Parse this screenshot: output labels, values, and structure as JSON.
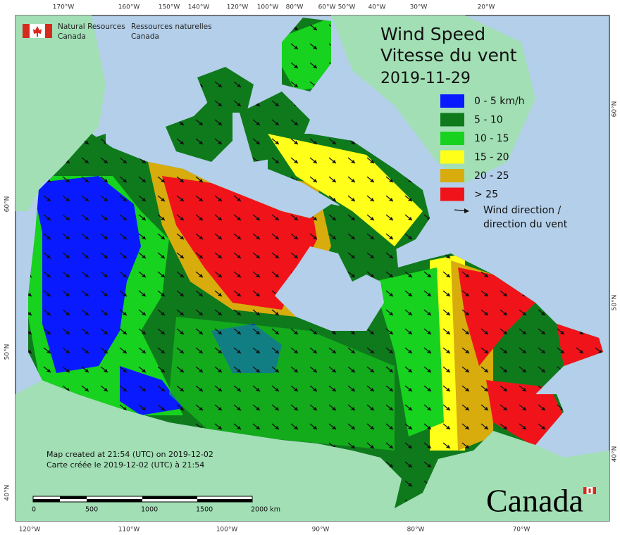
{
  "header": {
    "org_en": [
      "Natural Resources",
      "Canada"
    ],
    "org_fr": [
      "Ressources naturelles",
      "Canada"
    ]
  },
  "title": {
    "line1": "Wind Speed",
    "line2": "Vitesse du vent",
    "date": "2019-11-29"
  },
  "legend": {
    "items": [
      {
        "label": "0 - 5 km/h",
        "color": "#0a1aff"
      },
      {
        "label": "5 - 10",
        "color": "#0e7a1c"
      },
      {
        "label": "10 - 15",
        "color": "#17d21e"
      },
      {
        "label": "15 - 20",
        "color": "#ffff1a"
      },
      {
        "label": "20 - 25",
        "color": "#d8ac0c"
      },
      {
        "label": "> 25",
        "color": "#f0141a"
      }
    ],
    "arrow_label": [
      "Wind direction /",
      "direction du vent"
    ]
  },
  "notes": [
    "Map created at 21:54 (UTC) on 2019-12-02",
    "Carte créée le 2019-12-02 (UTC) à 21:54"
  ],
  "scale": {
    "ticks": [
      "0",
      "500",
      "1000",
      "1500",
      "2000 km"
    ]
  },
  "graticule": {
    "top": [
      "170°W",
      "160°W",
      "150°W",
      "140°W",
      "120°W",
      "100°W",
      "80°W",
      "60°W",
      "50°W",
      "40°W",
      "30°W",
      "20°W"
    ],
    "bottom": [
      "120°W",
      "110°W",
      "100°W",
      "90°W",
      "80°W",
      "70°W"
    ],
    "left": [
      "60°N",
      "50°N",
      "40°N"
    ],
    "right": [
      "60°N",
      "50°N",
      "40°N"
    ]
  },
  "wordmark": "Canada"
}
